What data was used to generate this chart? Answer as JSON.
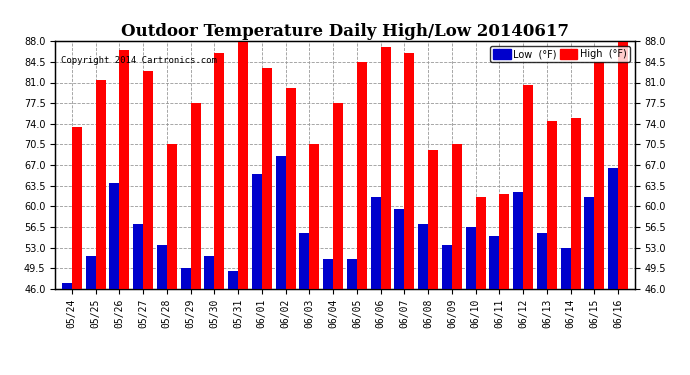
{
  "title": "Outdoor Temperature Daily High/Low 20140617",
  "copyright": "Copyright 2014 Cartronics.com",
  "dates": [
    "05/24",
    "05/25",
    "05/26",
    "05/27",
    "05/28",
    "05/29",
    "05/30",
    "05/31",
    "06/01",
    "06/02",
    "06/03",
    "06/04",
    "06/05",
    "06/06",
    "06/07",
    "06/08",
    "06/09",
    "06/10",
    "06/11",
    "06/12",
    "06/13",
    "06/14",
    "06/15",
    "06/16"
  ],
  "highs": [
    73.5,
    81.5,
    86.5,
    83.0,
    70.5,
    77.5,
    86.0,
    88.5,
    83.5,
    80.0,
    70.5,
    77.5,
    84.5,
    87.0,
    86.0,
    69.5,
    70.5,
    61.5,
    62.0,
    80.5,
    74.5,
    75.0,
    84.5,
    88.0
  ],
  "lows": [
    47.0,
    51.5,
    64.0,
    57.0,
    53.5,
    49.5,
    51.5,
    49.0,
    65.5,
    68.5,
    55.5,
    51.0,
    51.0,
    61.5,
    59.5,
    57.0,
    53.5,
    56.5,
    55.0,
    62.5,
    55.5,
    53.0,
    61.5,
    66.5
  ],
  "high_color": "#ff0000",
  "low_color": "#0000cc",
  "bg_color": "#ffffff",
  "grid_color": "#999999",
  "ylim": [
    46.0,
    88.0
  ],
  "yticks": [
    46.0,
    49.5,
    53.0,
    56.5,
    60.0,
    63.5,
    67.0,
    70.5,
    74.0,
    77.5,
    81.0,
    84.5,
    88.0
  ],
  "legend_low_label": "Low  (°F)",
  "legend_high_label": "High  (°F)",
  "title_fontsize": 12,
  "tick_fontsize": 7,
  "bar_width": 0.42,
  "border_color": "#000000"
}
